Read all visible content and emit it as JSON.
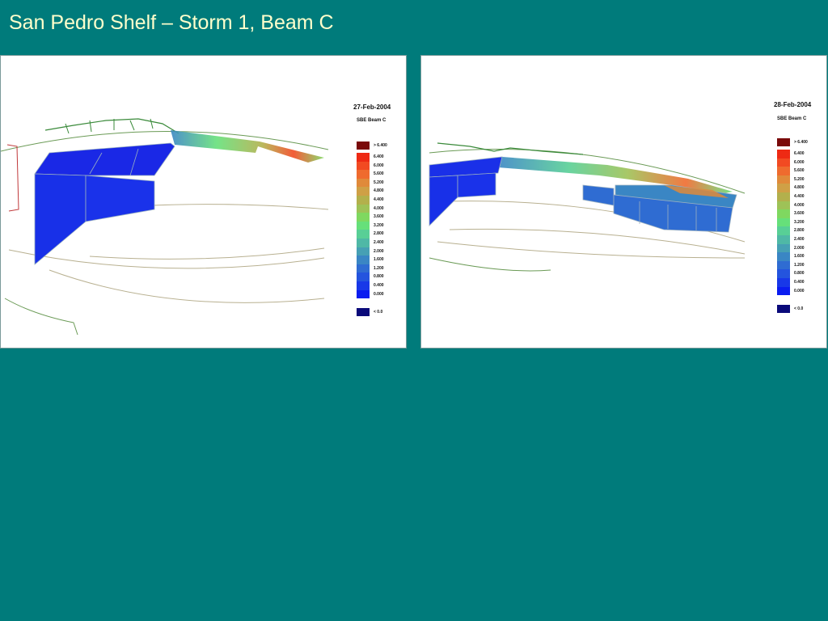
{
  "slide": {
    "title": "San Pedro Shelf – Storm 1, Beam C"
  },
  "panels": [
    {
      "date": "27-Feb-2004",
      "variable": "SBE Beam C",
      "legend": [
        {
          "label": "> 6.400",
          "color": "#7a0a0a"
        },
        {
          "label": "6.400",
          "color": "#ee2a14"
        },
        {
          "label": "6.000",
          "color": "#f24a22"
        },
        {
          "label": "5.600",
          "color": "#ef6b2e"
        },
        {
          "label": "5.200",
          "color": "#e08a3a"
        },
        {
          "label": "4.800",
          "color": "#cfa046"
        },
        {
          "label": "4.400",
          "color": "#b3b04c"
        },
        {
          "label": "4.000",
          "color": "#9ec257"
        },
        {
          "label": "3.600",
          "color": "#7fd860"
        },
        {
          "label": "3.200",
          "color": "#66e07a"
        },
        {
          "label": "2.800",
          "color": "#58cf96"
        },
        {
          "label": "2.400",
          "color": "#4fb8a6"
        },
        {
          "label": "2.000",
          "color": "#46a0b4"
        },
        {
          "label": "1.600",
          "color": "#3a86c4"
        },
        {
          "label": "1.200",
          "color": "#2f6cd2"
        },
        {
          "label": "0.800",
          "color": "#2454de"
        },
        {
          "label": "0.400",
          "color": "#1838e8"
        },
        {
          "label": "0.000",
          "color": "#0a1cf0"
        },
        {
          "label": "< 0.0",
          "color": "#0a0a7a"
        }
      ]
    },
    {
      "date": "28-Feb-2004",
      "variable": "SBE Beam C",
      "legend": [
        {
          "label": "> 6.400",
          "color": "#7a0a0a"
        },
        {
          "label": "6.400",
          "color": "#ee2a14"
        },
        {
          "label": "6.000",
          "color": "#f24a22"
        },
        {
          "label": "5.600",
          "color": "#ef6b2e"
        },
        {
          "label": "5.200",
          "color": "#e08a3a"
        },
        {
          "label": "4.800",
          "color": "#cfa046"
        },
        {
          "label": "4.400",
          "color": "#b3b04c"
        },
        {
          "label": "4.000",
          "color": "#9ec257"
        },
        {
          "label": "3.600",
          "color": "#7fd860"
        },
        {
          "label": "3.200",
          "color": "#66e07a"
        },
        {
          "label": "2.800",
          "color": "#58cf96"
        },
        {
          "label": "2.400",
          "color": "#4fb8a6"
        },
        {
          "label": "2.000",
          "color": "#46a0b4"
        },
        {
          "label": "1.600",
          "color": "#3a86c4"
        },
        {
          "label": "1.200",
          "color": "#2f6cd2"
        },
        {
          "label": "0.800",
          "color": "#2454de"
        },
        {
          "label": "0.400",
          "color": "#1838e8"
        },
        {
          "label": "0.000",
          "color": "#0a1cf0"
        },
        {
          "label": "< 0.0",
          "color": "#0a0a7a"
        }
      ]
    }
  ]
}
